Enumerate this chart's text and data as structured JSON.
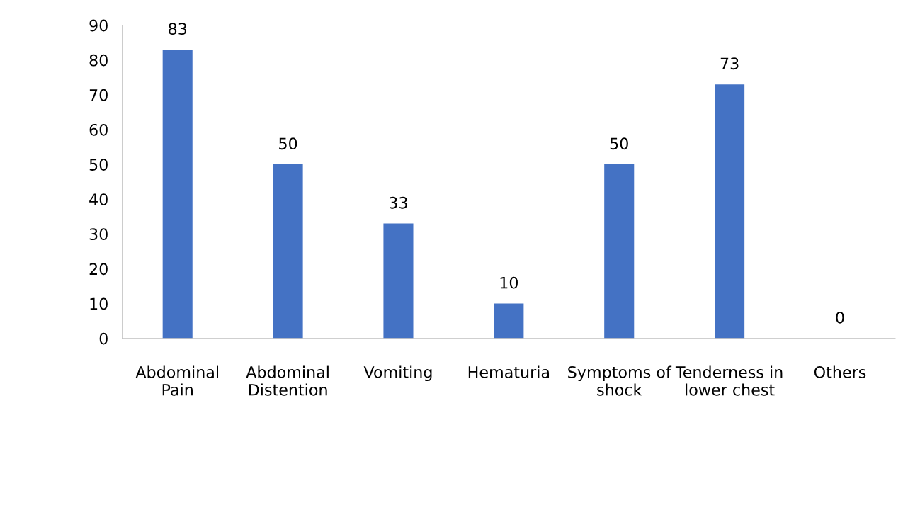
{
  "chart_data": {
    "type": "bar",
    "categories": [
      "Abdominal\nPain",
      "Abdominal\nDistention",
      "Vomiting",
      "Hematuria",
      "Symptoms of\nshock",
      "Tenderness in\nlower chest",
      "Others"
    ],
    "values": [
      83,
      50,
      33,
      10,
      50,
      73,
      0
    ],
    "color": "#4472c4",
    "ylim": [
      0,
      90
    ],
    "yticks": [
      0,
      10,
      20,
      30,
      40,
      50,
      60,
      70,
      80,
      90
    ],
    "data_labels": true,
    "grid": false,
    "legend": false
  }
}
